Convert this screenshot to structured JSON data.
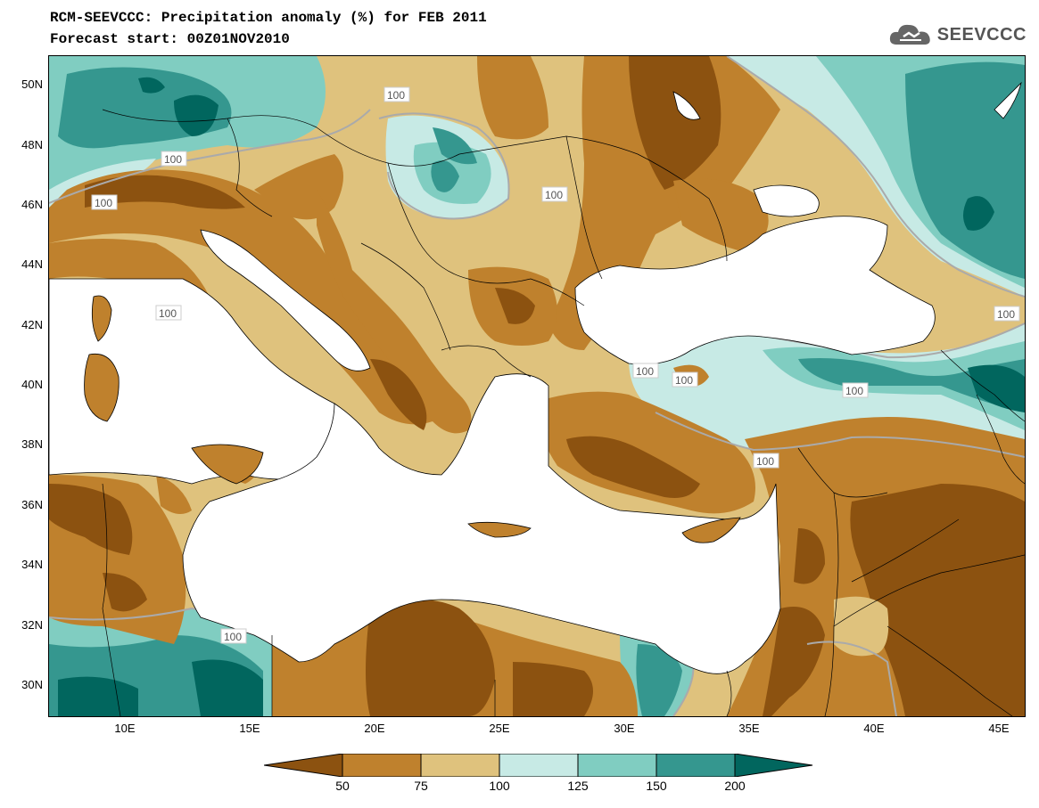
{
  "header": {
    "title": "RCM-SEEVCCC: Precipitation anomaly (%) for FEB 2011",
    "subtitle": "Forecast start: 00Z01NOV2010",
    "logo_text": "SEEVCCC",
    "logo_icon": "cloud-icon"
  },
  "map": {
    "variable": "Precipitation anomaly (%)",
    "lon_range": [
      7,
      46
    ],
    "lat_range": [
      29,
      51
    ],
    "lat_ticks": [
      "50N",
      "48N",
      "46N",
      "44N",
      "42N",
      "40N",
      "38N",
      "36N",
      "34N",
      "32N",
      "30N"
    ],
    "lon_ticks": [
      "10E",
      "15E",
      "20E",
      "25E",
      "30E",
      "35E",
      "40E",
      "45E"
    ],
    "contour_labels": [
      "100",
      "100",
      "100",
      "100",
      "100",
      "100",
      "100",
      "100",
      "100",
      "100",
      "100"
    ]
  },
  "legend": {
    "levels": [
      "50",
      "75",
      "100",
      "125",
      "150",
      "200"
    ],
    "colors": [
      "#8c5210",
      "#bf812d",
      "#dfc27d",
      "#c7eae5",
      "#80cdc1",
      "#35978f",
      "#01665e"
    ]
  }
}
